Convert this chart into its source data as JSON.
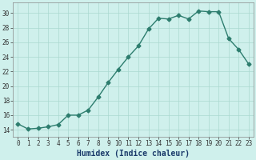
{
  "x": [
    0,
    1,
    2,
    3,
    4,
    5,
    6,
    7,
    8,
    9,
    10,
    11,
    12,
    13,
    14,
    15,
    16,
    17,
    18,
    19,
    20,
    21,
    22,
    23
  ],
  "y": [
    14.8,
    14.1,
    14.2,
    14.4,
    14.7,
    16.0,
    16.0,
    16.7,
    18.5,
    20.5,
    22.3,
    24.0,
    25.5,
    27.8,
    29.3,
    29.2,
    29.7,
    29.2,
    30.3,
    30.2,
    30.2,
    26.5,
    25.0,
    23.0
  ],
  "line_color": "#2d7d6e",
  "marker": "D",
  "marker_size": 2.5,
  "line_width": 1.0,
  "xlabel": "Humidex (Indice chaleur)",
  "xlabel_fontsize": 7,
  "ylabel_ticks": [
    14,
    16,
    18,
    20,
    22,
    24,
    26,
    28,
    30
  ],
  "xtick_labels": [
    "0",
    "1",
    "2",
    "3",
    "4",
    "5",
    "6",
    "7",
    "8",
    "9",
    "10",
    "11",
    "12",
    "13",
    "14",
    "15",
    "16",
    "17",
    "18",
    "19",
    "20",
    "21",
    "22",
    "23"
  ],
  "ylim": [
    13.0,
    31.5
  ],
  "xlim": [
    -0.5,
    23.5
  ],
  "bg_color": "#cff0ec",
  "grid_color": "#aad8d0",
  "tick_fontsize": 5.5,
  "xlabel_color": "#1a3a6a",
  "fig_width": 3.2,
  "fig_height": 2.0
}
